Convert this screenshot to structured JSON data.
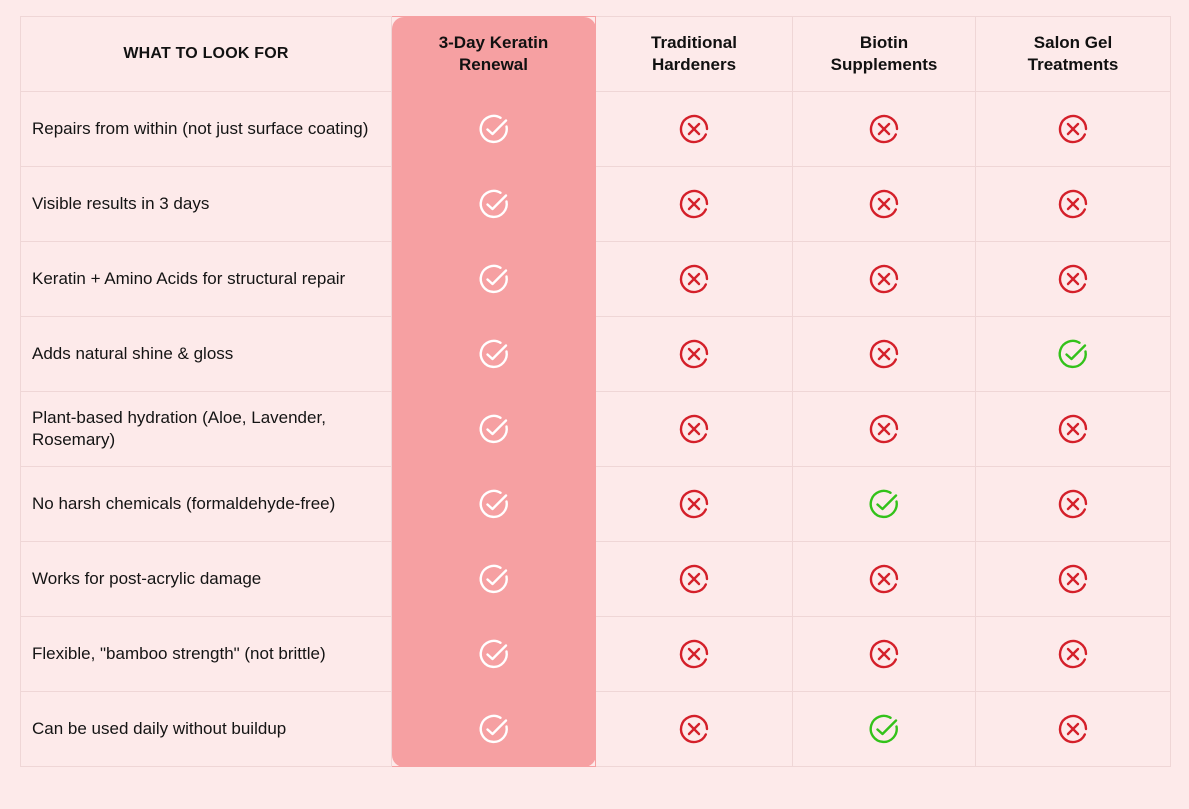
{
  "header": {
    "feature_label": "WHAT TO LOOK FOR",
    "columns": [
      {
        "line1": "3-Day Keratin",
        "line2": "Renewal"
      },
      {
        "line1": "Traditional",
        "line2": "Hardeners"
      },
      {
        "line1": "Biotin",
        "line2": "Supplements"
      },
      {
        "line1": "Salon Gel",
        "line2": "Treatments"
      }
    ]
  },
  "rows": [
    {
      "feature": "Repairs from within (not just surface coating)",
      "marks": [
        "check",
        "cross",
        "cross",
        "cross"
      ]
    },
    {
      "feature": "Visible results in 3 days",
      "marks": [
        "check",
        "cross",
        "cross",
        "cross"
      ]
    },
    {
      "feature": "Keratin + Amino Acids for structural repair",
      "marks": [
        "check",
        "cross",
        "cross",
        "cross"
      ]
    },
    {
      "feature": "Adds natural shine & gloss",
      "marks": [
        "check",
        "cross",
        "cross",
        "check"
      ]
    },
    {
      "feature": "Plant-based hydration (Aloe, Lavender, Rosemary)",
      "marks": [
        "check",
        "cross",
        "cross",
        "cross"
      ]
    },
    {
      "feature": "No harsh chemicals (formaldehyde-free)",
      "marks": [
        "check",
        "cross",
        "check",
        "cross"
      ]
    },
    {
      "feature": "Works for post-acrylic damage",
      "marks": [
        "check",
        "cross",
        "cross",
        "cross"
      ]
    },
    {
      "feature": "Flexible, \"bamboo strength\" (not brittle)",
      "marks": [
        "check",
        "cross",
        "cross",
        "cross"
      ]
    },
    {
      "feature": "Can be used daily without buildup",
      "marks": [
        "check",
        "cross",
        "check",
        "cross"
      ]
    }
  ],
  "colors": {
    "background": "#fdeaea",
    "hero_column": "#f6a0a2",
    "hero_check": "#ffffff",
    "check": "#33c21a",
    "cross": "#d4202a"
  },
  "icons": {
    "check": "check-circle-icon",
    "cross": "x-circle-icon"
  }
}
